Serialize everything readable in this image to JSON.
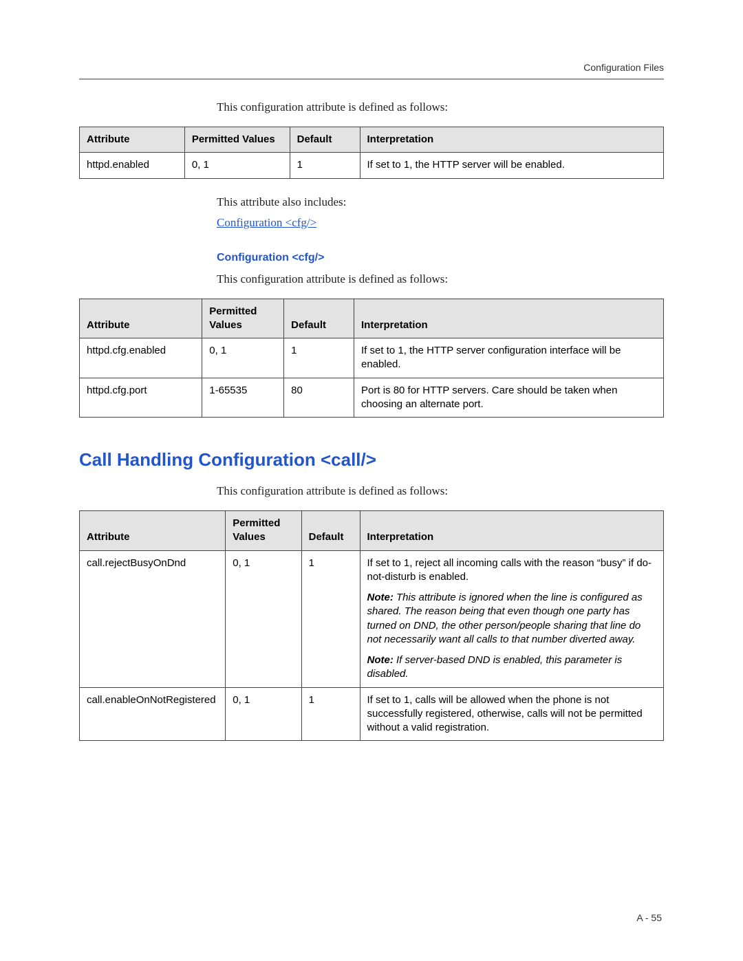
{
  "header": {
    "right": "Configuration Files"
  },
  "footer": {
    "right": "A - 55"
  },
  "sections": {
    "httpd": {
      "intro": "This configuration attribute is defined as follows:",
      "table": {
        "headers": {
          "attr": "Attribute",
          "pv": "Permitted Values",
          "def": "Default",
          "interp": "Interpretation"
        },
        "rows": [
          {
            "attr": "httpd.enabled",
            "pv": "0, 1",
            "def": "1",
            "interp": "If set to 1, the HTTP server will be enabled."
          }
        ]
      },
      "also_inc_label": "This attribute also includes:",
      "link": "Configuration <cfg/>"
    },
    "cfg": {
      "heading": "Configuration <cfg/>",
      "intro": "This configuration attribute is defined as follows:",
      "table": {
        "headers": {
          "attr": "Attribute",
          "pv": "Permitted Values",
          "def": "Default",
          "interp": "Interpretation"
        },
        "rows": [
          {
            "attr": "httpd.cfg.enabled",
            "pv": "0, 1",
            "def": "1",
            "interp": "If set to 1, the HTTP server configuration interface will be enabled."
          },
          {
            "attr": "httpd.cfg.port",
            "pv": "1-65535",
            "def": "80",
            "interp": "Port is 80 for HTTP servers. Care should be taken when choosing an alternate port."
          }
        ]
      }
    },
    "call": {
      "title": "Call Handling Configuration <call/>",
      "intro": "This configuration attribute is defined as follows:",
      "table": {
        "headers": {
          "attr": "Attribute",
          "pv": "Permitted Values",
          "def": "Default",
          "interp": "Interpretation"
        },
        "rows": [
          {
            "attr": "call.rejectBusyOnDnd",
            "pv": "0, 1",
            "def": "1",
            "interp_main": "If set to 1, reject all incoming calls with the reason “busy” if do-not-disturb is enabled.",
            "note1_label": "Note:",
            "note1": " This attribute is ignored when the line is configured as shared. The reason being that even though one party has turned on DND, the other person/people sharing that line do not necessarily want all calls to that number diverted away.",
            "note2_label": "Note:",
            "note2": " If server-based DND is enabled, this parameter is disabled."
          },
          {
            "attr": "call.enableOnNotRegistered",
            "pv": "0, 1",
            "def": "1",
            "interp_main": "If set to 1, calls will be allowed when the phone is not successfully registered, otherwise, calls will not be permitted without a valid registration."
          }
        ]
      }
    }
  }
}
